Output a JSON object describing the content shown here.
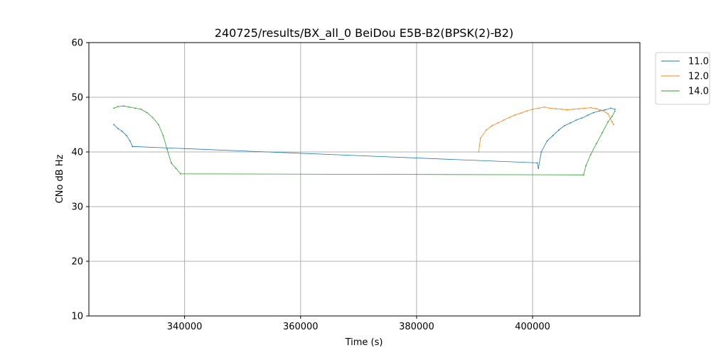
{
  "chart_data": {
    "type": "line",
    "title": "240725/results/BX_all_0 BeiDou E5B-B2(BPSK(2)-B2)",
    "xlabel": "Time (s)",
    "ylabel": "CNo dB Hz",
    "xlim": [
      323500,
      418500
    ],
    "ylim": [
      10,
      60
    ],
    "xticks": [
      340000,
      360000,
      380000,
      400000
    ],
    "xtick_labels": [
      "340000",
      "360000",
      "380000",
      "400000"
    ],
    "yticks": [
      10,
      20,
      30,
      40,
      50,
      60
    ],
    "ytick_labels": [
      "10",
      "20",
      "30",
      "40",
      "50",
      "60"
    ],
    "grid": true,
    "legend_position": "outside-top-right",
    "series": [
      {
        "name": "11.0",
        "color": "#1f77b4",
        "points": [
          [
            327800,
            45.0
          ],
          [
            328500,
            44.3
          ],
          [
            329200,
            43.8
          ],
          [
            330000,
            43.0
          ],
          [
            330600,
            42.0
          ],
          [
            331000,
            41.0
          ],
          [
            400800,
            38.0
          ],
          [
            401000,
            37.0
          ],
          [
            401500,
            40.0
          ],
          [
            402500,
            42.0
          ],
          [
            403500,
            43.0
          ],
          [
            404500,
            44.0
          ],
          [
            405500,
            44.8
          ],
          [
            406500,
            45.3
          ],
          [
            407500,
            45.8
          ],
          [
            408500,
            46.2
          ],
          [
            409500,
            46.7
          ],
          [
            410500,
            47.2
          ],
          [
            411500,
            47.5
          ],
          [
            412500,
            47.7
          ],
          [
            413500,
            48.0
          ],
          [
            414200,
            47.8
          ]
        ]
      },
      {
        "name": "12.0",
        "color": "#ff7f0e",
        "points": [
          [
            390700,
            40.0
          ],
          [
            391000,
            42.5
          ],
          [
            392000,
            44.0
          ],
          [
            393000,
            44.8
          ],
          [
            394000,
            45.3
          ],
          [
            395000,
            45.8
          ],
          [
            396000,
            46.3
          ],
          [
            397000,
            46.8
          ],
          [
            398000,
            47.1
          ],
          [
            399000,
            47.5
          ],
          [
            400000,
            47.8
          ],
          [
            401000,
            48.0
          ],
          [
            402000,
            48.2
          ],
          [
            403000,
            48.0
          ],
          [
            404000,
            47.9
          ],
          [
            405000,
            47.8
          ],
          [
            406000,
            47.7
          ],
          [
            407000,
            47.8
          ],
          [
            408000,
            47.9
          ],
          [
            409000,
            48.0
          ],
          [
            410000,
            48.1
          ],
          [
            411000,
            47.9
          ],
          [
            412000,
            47.6
          ],
          [
            413000,
            47.0
          ],
          [
            413700,
            45.5
          ],
          [
            414000,
            45.0
          ]
        ]
      },
      {
        "name": "14.0",
        "color": "#2ca02c",
        "points": [
          [
            327800,
            48.0
          ],
          [
            328500,
            48.3
          ],
          [
            329500,
            48.4
          ],
          [
            330500,
            48.2
          ],
          [
            331500,
            48.0
          ],
          [
            332500,
            47.8
          ],
          [
            333500,
            47.2
          ],
          [
            334500,
            46.3
          ],
          [
            335500,
            45.0
          ],
          [
            336300,
            43.0
          ],
          [
            337000,
            40.5
          ],
          [
            337700,
            38.0
          ],
          [
            338500,
            37.0
          ],
          [
            339300,
            36.0
          ],
          [
            408800,
            35.8
          ],
          [
            409200,
            37.5
          ],
          [
            410000,
            39.5
          ],
          [
            411000,
            41.5
          ],
          [
            412000,
            43.5
          ],
          [
            413000,
            45.5
          ],
          [
            413700,
            46.5
          ],
          [
            414200,
            47.5
          ]
        ]
      }
    ]
  }
}
